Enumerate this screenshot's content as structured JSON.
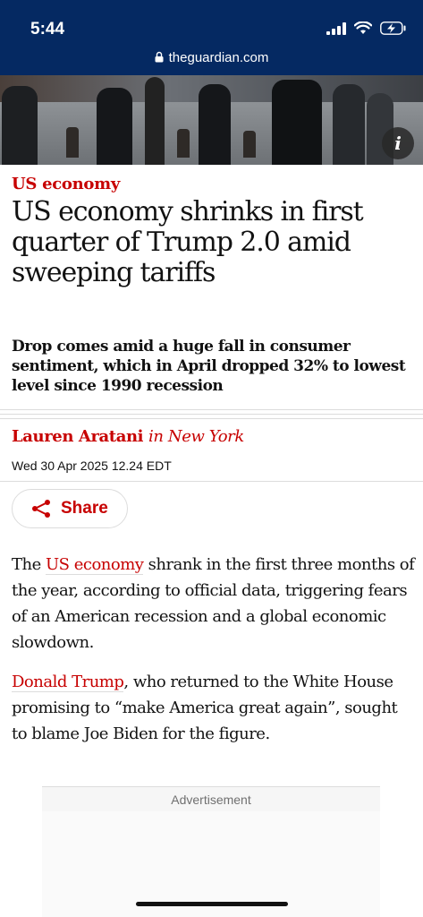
{
  "status_bar": {
    "time": "5:44",
    "url": "theguardian.com"
  },
  "hero": {
    "info_label": "i"
  },
  "article": {
    "kicker": "US economy",
    "headline": "US economy shrinks in first quarter of Trump 2.0 amid sweeping tariffs",
    "standfirst": "Drop comes amid a huge fall in consumer sentiment, which in April dropped 32% to lowest level since 1990 recession",
    "author": "Lauren Aratani",
    "location": "in New York",
    "date": "Wed 30 Apr 2025 12.24 EDT",
    "share_label": "Share",
    "paragraphs": [
      {
        "link": "US economy",
        "pre": "The ",
        "post": " shrank in the first three months of the year, according to official data, triggering fears of an American recession and a global economic slowdown."
      },
      {
        "link": "Donald Trump",
        "pre": "",
        "post": ", who returned to the White House promising to “make America great again”, sought to blame Joe Biden for the figure."
      }
    ],
    "advert_label": "Advertisement"
  },
  "colors": {
    "brand": "#052962",
    "accent": "#c70000"
  }
}
